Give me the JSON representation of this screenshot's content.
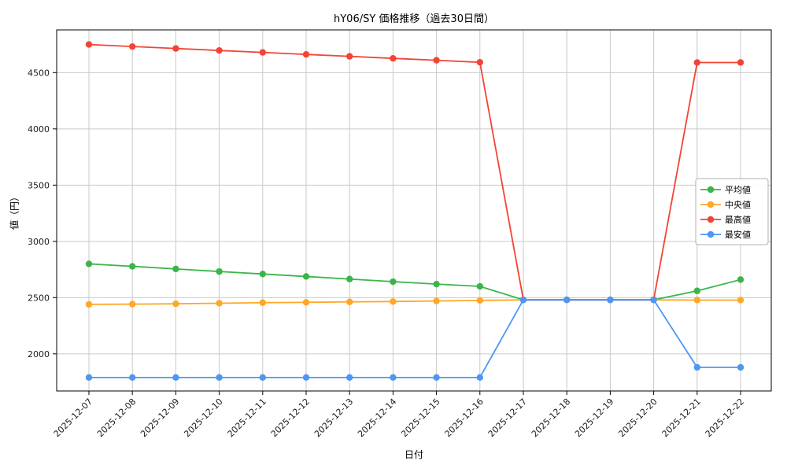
{
  "figure": {
    "title": "hY06/SY 価格推移（過去30日間）",
    "xlabel": "日付",
    "ylabel": "値（円）"
  },
  "chart_data": {
    "type": "line",
    "title": "hY06/SY 価格推移（過去30日間）",
    "xlabel": "日付",
    "ylabel": "値（円）",
    "grid": true,
    "legend_position": "center right",
    "ylim": [
      1670,
      4880
    ],
    "yticks": [
      2000,
      2500,
      3000,
      3500,
      4000,
      4500
    ],
    "categories": [
      "2025-12-07",
      "2025-12-08",
      "2025-12-09",
      "2025-12-10",
      "2025-12-11",
      "2025-12-12",
      "2025-12-13",
      "2025-12-14",
      "2025-12-15",
      "2025-12-16",
      "2025-12-17",
      "2025-12-18",
      "2025-12-19",
      "2025-12-20",
      "2025-12-21",
      "2025-12-22"
    ],
    "series": [
      {
        "key": "average",
        "name": "平均値",
        "color": "#3bb54a",
        "values": [
          2800,
          2778,
          2755,
          2732,
          2710,
          2688,
          2665,
          2642,
          2620,
          2600,
          2480,
          2480,
          2480,
          2480,
          2560,
          2660
        ]
      },
      {
        "key": "median",
        "name": "中央値",
        "color": "#ffa726",
        "values": [
          2440,
          2442,
          2445,
          2450,
          2455,
          2458,
          2462,
          2465,
          2470,
          2475,
          2480,
          2480,
          2480,
          2480,
          2478,
          2478
        ]
      },
      {
        "key": "max",
        "name": "最高値",
        "color": "#f44336",
        "values": [
          4750,
          4732,
          4715,
          4697,
          4680,
          4662,
          4645,
          4627,
          4610,
          4592,
          2480,
          2480,
          2480,
          2480,
          4590,
          4590
        ]
      },
      {
        "key": "min",
        "name": "最安値",
        "color": "#4e96f3",
        "values": [
          1790,
          1790,
          1790,
          1790,
          1790,
          1790,
          1790,
          1790,
          1790,
          1790,
          2480,
          2480,
          2480,
          2480,
          1880,
          1880
        ]
      }
    ],
    "colors": {
      "grid": "#c9c9c9",
      "spine": "#000000",
      "tick_text": "#1a1a1a",
      "legend_border": "#b0b0b0"
    }
  }
}
